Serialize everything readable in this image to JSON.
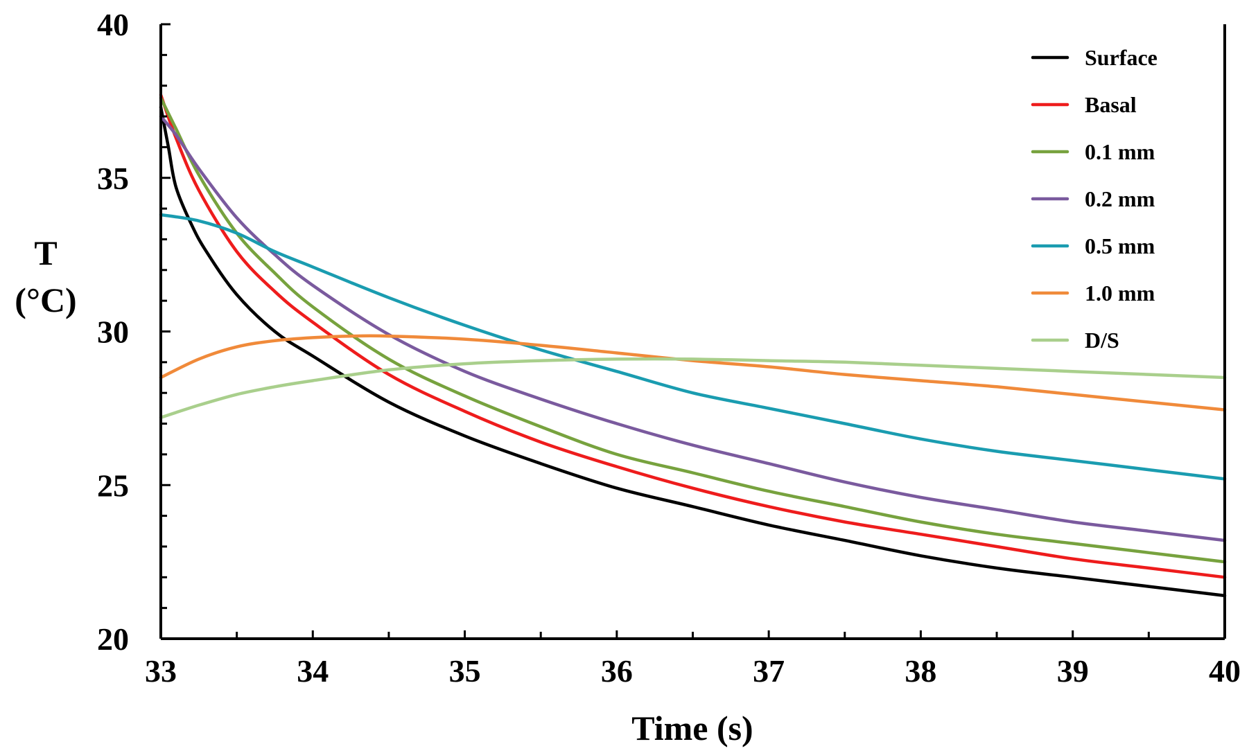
{
  "chart_data": {
    "type": "line",
    "title": "",
    "xlabel": "Time (s)",
    "ylabel_line1": "T",
    "ylabel_line2": "(°C)",
    "xlim": [
      33,
      40
    ],
    "ylim": [
      20,
      40
    ],
    "x_ticks": [
      "33",
      "34",
      "35",
      "36",
      "37",
      "38",
      "39",
      "40"
    ],
    "y_ticks": [
      "20",
      "25",
      "30",
      "35",
      "40"
    ],
    "x_minor_step": 0.5,
    "y_minor_step": 1,
    "legend_position": "top-right",
    "grid": false,
    "series": [
      {
        "name": "Surface",
        "color": "#000000",
        "x": [
          33,
          33.05,
          33.1,
          33.2,
          33.3,
          33.5,
          33.75,
          34,
          34.5,
          35,
          35.5,
          36,
          36.5,
          37,
          37.5,
          38,
          38.5,
          39,
          39.5,
          40
        ],
        "y": [
          37.3,
          36.0,
          34.7,
          33.5,
          32.6,
          31.2,
          30.0,
          29.2,
          27.7,
          26.6,
          25.7,
          24.9,
          24.3,
          23.7,
          23.2,
          22.7,
          22.3,
          22.0,
          21.7,
          21.4
        ]
      },
      {
        "name": "Basal",
        "color": "#ee1c1c",
        "x": [
          33,
          33.1,
          33.25,
          33.5,
          33.75,
          34,
          34.5,
          35,
          35.5,
          36,
          36.5,
          37,
          37.5,
          38,
          38.5,
          39,
          39.5,
          40
        ],
        "y": [
          37.7,
          36.3,
          34.6,
          32.6,
          31.3,
          30.3,
          28.6,
          27.4,
          26.4,
          25.6,
          24.9,
          24.3,
          23.8,
          23.4,
          23.0,
          22.6,
          22.3,
          22.0
        ]
      },
      {
        "name": "0.1 mm",
        "color": "#77a23e",
        "x": [
          33,
          33.1,
          33.25,
          33.5,
          33.75,
          34,
          34.5,
          35,
          35.5,
          36,
          36.5,
          37,
          37.5,
          38,
          38.5,
          39,
          39.5,
          40
        ],
        "y": [
          37.6,
          36.6,
          35.1,
          33.2,
          31.9,
          30.8,
          29.1,
          27.9,
          26.9,
          26.0,
          25.4,
          24.8,
          24.3,
          23.8,
          23.4,
          23.1,
          22.8,
          22.5
        ]
      },
      {
        "name": "0.2 mm",
        "color": "#7a5a9e",
        "x": [
          33,
          33.1,
          33.25,
          33.5,
          33.75,
          34,
          34.5,
          35,
          35.5,
          36,
          36.5,
          37,
          37.5,
          38,
          38.5,
          39,
          39.5,
          40
        ],
        "y": [
          37.0,
          36.4,
          35.3,
          33.7,
          32.5,
          31.5,
          29.9,
          28.7,
          27.8,
          27.0,
          26.3,
          25.7,
          25.1,
          24.6,
          24.2,
          23.8,
          23.5,
          23.2
        ]
      },
      {
        "name": "0.5 mm",
        "color": "#1a9cb0",
        "x": [
          33,
          33.25,
          33.5,
          33.75,
          34,
          34.5,
          35,
          35.5,
          36,
          36.5,
          37,
          37.5,
          38,
          38.5,
          39,
          39.5,
          40
        ],
        "y": [
          33.8,
          33.6,
          33.2,
          32.6,
          32.1,
          31.1,
          30.2,
          29.4,
          28.7,
          28.0,
          27.5,
          27.0,
          26.5,
          26.1,
          25.8,
          25.5,
          25.2
        ]
      },
      {
        "name": "1.0 mm",
        "color": "#f08a3a",
        "x": [
          33,
          33.25,
          33.5,
          33.75,
          34,
          34.25,
          34.5,
          35,
          35.5,
          36,
          36.5,
          37,
          37.5,
          38,
          38.5,
          39,
          39.5,
          40
        ],
        "y": [
          28.5,
          29.1,
          29.5,
          29.7,
          29.8,
          29.85,
          29.85,
          29.75,
          29.55,
          29.3,
          29.05,
          28.85,
          28.6,
          28.4,
          28.2,
          27.95,
          27.7,
          27.45
        ]
      },
      {
        "name": "D/S",
        "color": "#a9cf8c",
        "x": [
          33,
          33.25,
          33.5,
          33.75,
          34,
          34.5,
          35,
          35.5,
          36,
          36.5,
          37,
          37.5,
          38,
          38.5,
          39,
          39.5,
          40
        ],
        "y": [
          27.2,
          27.6,
          27.95,
          28.2,
          28.4,
          28.75,
          28.95,
          29.05,
          29.1,
          29.1,
          29.05,
          29.0,
          28.9,
          28.8,
          28.7,
          28.6,
          28.5
        ]
      }
    ]
  }
}
